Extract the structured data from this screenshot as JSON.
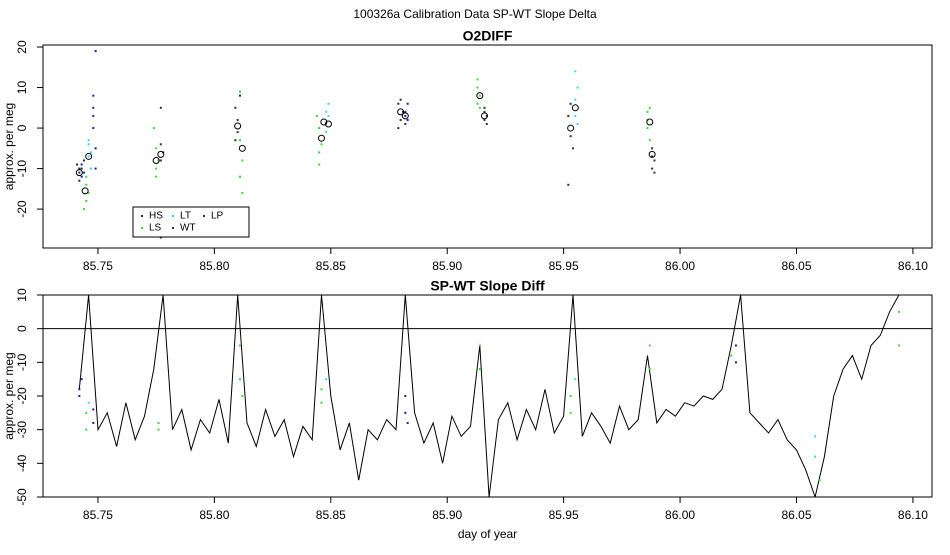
{
  "title": "100326a   Calibration Data SP-WT Slope Delta",
  "chart_data": [
    {
      "type": "scatter",
      "title": "O2DIFF",
      "y_label": "approx. per meg",
      "xlim": [
        85.7264,
        86.1082
      ],
      "ylim": [
        -29.6,
        20.5
      ],
      "xticks": [
        85.75,
        {
          "value": 85.8,
          "label": "85.80"
        },
        85.85,
        {
          "value": 85.9,
          "label": "85.90"
        },
        85.95,
        {
          "value": 86,
          "label": "86.00"
        },
        86.05,
        {
          "value": 86.1,
          "label": "86.10"
        }
      ],
      "yticks": [
        20,
        10,
        0,
        -10,
        -20
      ],
      "legend": "bottom-left",
      "series": [
        {
          "name": "HS",
          "color": "#1e3a1e",
          "x": [
            85.741,
            85.742,
            85.743,
            85.742,
            85.744,
            85.809,
            85.81,
            85.81,
            85.811,
            85.809,
            85.879,
            85.88,
            85.881,
            85.88,
            85.879,
            85.952,
            85.953,
            85.953,
            85.954,
            85.952
          ],
          "values": [
            -9,
            -11,
            -10,
            -13,
            -8,
            5,
            -1,
            2,
            8,
            -3,
            6,
            2,
            4,
            7,
            0,
            3,
            -2,
            6,
            -5,
            -14
          ]
        },
        {
          "name": "LS",
          "color": "#33e033",
          "x": [
            85.745,
            85.745,
            85.744,
            85.745,
            85.746,
            85.775,
            85.775,
            85.776,
            85.774,
            85.775,
            85.811,
            85.812,
            85.811,
            85.812,
            85.811,
            85.845,
            85.845,
            85.846,
            85.844,
            85.845,
            85.913,
            85.913,
            85.914,
            85.913,
            85.914,
            85.986,
            85.986,
            85.987,
            85.986,
            85.987
          ],
          "values": [
            -12,
            -18,
            -20,
            -14,
            -16,
            -5,
            -10,
            -8,
            0,
            -12,
            -3,
            -8,
            -12,
            -16,
            9,
            -6,
            0,
            -4,
            3,
            -9,
            6,
            10,
            8,
            12,
            5,
            4,
            0,
            -3,
            2,
            5
          ]
        },
        {
          "name": "LT",
          "color": "#33d6ee",
          "x": [
            85.746,
            85.746,
            85.747,
            85.746,
            85.747,
            85.848,
            85.848,
            85.849,
            85.848,
            85.849,
            85.955,
            85.955,
            85.956,
            85.955,
            85.956
          ],
          "values": [
            -4,
            -7,
            -10,
            -3,
            -6,
            1,
            4,
            6,
            -1,
            3,
            3,
            7,
            10,
            14,
            1
          ]
        },
        {
          "name": "WT",
          "color": "#333333",
          "x": [
            85.777,
            85.777,
            85.778,
            85.777,
            85.777,
            85.916,
            85.916,
            85.917,
            85.916,
            85.917,
            85.988,
            85.988,
            85.989,
            85.988,
            85.989
          ],
          "values": [
            -4,
            -8,
            -6,
            5,
            -27,
            2,
            4,
            3,
            5,
            1,
            -5,
            -7,
            -8,
            -10,
            -11
          ]
        },
        {
          "name": "LP",
          "color": "#1a1aa8",
          "x": [
            85.742,
            85.743,
            85.743,
            85.744,
            85.748,
            85.748,
            85.749,
            85.748,
            85.749,
            85.748,
            85.749,
            85.882,
            85.882,
            85.883,
            85.882,
            85.883
          ],
          "values": [
            -10,
            -12,
            -9,
            -11,
            0,
            3,
            -5,
            8,
            -10,
            5,
            19,
            1,
            4,
            6,
            3,
            2
          ]
        }
      ],
      "cluster_means": {
        "x": [
          85.742,
          85.7445,
          85.746,
          85.775,
          85.777,
          85.81,
          85.812,
          85.846,
          85.847,
          85.849,
          85.88,
          85.882,
          85.914,
          85.916,
          85.953,
          85.955,
          85.987,
          85.988
        ],
        "values": [
          -11,
          -15.5,
          -7,
          -8,
          -6.5,
          0.5,
          -5,
          -2.5,
          1.5,
          1,
          4,
          3,
          8,
          3,
          0,
          5,
          1.5,
          -6.5
        ]
      }
    },
    {
      "type": "line",
      "title": "SP-WT Slope Diff",
      "y_label": "approx. per meg",
      "x_label": "day of year",
      "xlim": [
        85.7264,
        86.1082
      ],
      "ylim": [
        -50,
        10
      ],
      "xticks": [
        85.75,
        {
          "value": 85.8,
          "label": "85.80"
        },
        85.85,
        {
          "value": 85.9,
          "label": "85.90"
        },
        85.95,
        {
          "value": 86,
          "label": "86.00"
        },
        86.05,
        {
          "value": 86.1,
          "label": "86.10"
        }
      ],
      "yticks": [
        10,
        0,
        -10,
        -20,
        -30,
        -40,
        -50
      ],
      "hline": 0,
      "color": "#000000",
      "x": [
        85.742,
        85.746,
        85.75,
        85.754,
        85.758,
        85.762,
        85.766,
        85.77,
        85.774,
        85.778,
        85.782,
        85.786,
        85.79,
        85.794,
        85.798,
        85.802,
        85.806,
        85.81,
        85.814,
        85.818,
        85.822,
        85.826,
        85.83,
        85.834,
        85.838,
        85.842,
        85.846,
        85.85,
        85.854,
        85.858,
        85.862,
        85.866,
        85.87,
        85.874,
        85.878,
        85.882,
        85.886,
        85.89,
        85.894,
        85.898,
        85.902,
        85.906,
        85.91,
        85.914,
        85.918,
        85.922,
        85.926,
        85.93,
        85.934,
        85.938,
        85.942,
        85.946,
        85.95,
        85.954,
        85.958,
        85.962,
        85.966,
        85.97,
        85.974,
        85.978,
        85.982,
        85.986,
        85.99,
        85.994,
        85.998,
        86.002,
        86.006,
        86.01,
        86.014,
        86.018,
        86.022,
        86.026,
        86.03,
        86.034,
        86.038,
        86.042,
        86.046,
        86.05,
        86.054,
        86.058,
        86.062,
        86.066,
        86.07,
        86.074,
        86.078,
        86.082,
        86.086,
        86.09,
        86.094
      ],
      "values": [
        -18,
        10,
        -30,
        -25,
        -35,
        -22,
        -33,
        -26,
        -12,
        10,
        -30,
        -24,
        -36,
        -27,
        -31,
        -21,
        -34,
        10,
        -28,
        -35,
        -24,
        -32,
        -27,
        -38,
        -29,
        -33,
        10,
        -20,
        -36,
        -28,
        -45,
        -30,
        -33,
        -27,
        -30,
        10,
        -25,
        -34,
        -28,
        -40,
        -26,
        -32,
        -29,
        -5,
        -50,
        -27,
        -22,
        -33,
        -24,
        -30,
        -18,
        -31,
        -26,
        10,
        -32,
        -25,
        -29,
        -34,
        -23,
        -30,
        -27,
        -8,
        -28,
        -24,
        -26,
        -22,
        -23,
        -20,
        -21,
        -18,
        -5,
        10,
        -25,
        -28,
        -31,
        -27,
        -33,
        -36,
        -42,
        -50,
        -38,
        -20,
        -12,
        -8,
        -15,
        -5,
        -2,
        5,
        10
      ],
      "points": [
        {
          "color": "#1a1aa8",
          "x": [
            85.742,
            85.742,
            85.743,
            85.748,
            85.748,
            85.882,
            85.882,
            85.883,
            86.024,
            86.024
          ],
          "values": [
            -18,
            -20,
            -15,
            -28,
            -24,
            -20,
            -25,
            -28,
            -5,
            -10
          ]
        },
        {
          "color": "#33e033",
          "x": [
            85.745,
            85.745,
            85.776,
            85.776,
            85.811,
            85.811,
            85.812,
            85.846,
            85.846,
            85.914,
            85.914,
            85.953,
            85.953,
            85.987,
            85.987,
            86.022,
            86.06,
            86.094,
            86.094
          ],
          "values": [
            -25,
            -30,
            -30,
            -28,
            -15,
            -5,
            -20,
            -18,
            -22,
            -5,
            -12,
            -20,
            -25,
            -12,
            -5,
            -8,
            -45,
            -5,
            5
          ]
        },
        {
          "color": "#33d6ee",
          "x": [
            85.746,
            85.848,
            85.955,
            86.058,
            86.058
          ],
          "values": [
            -22,
            -15,
            -15,
            -32,
            -38
          ]
        }
      ]
    }
  ]
}
